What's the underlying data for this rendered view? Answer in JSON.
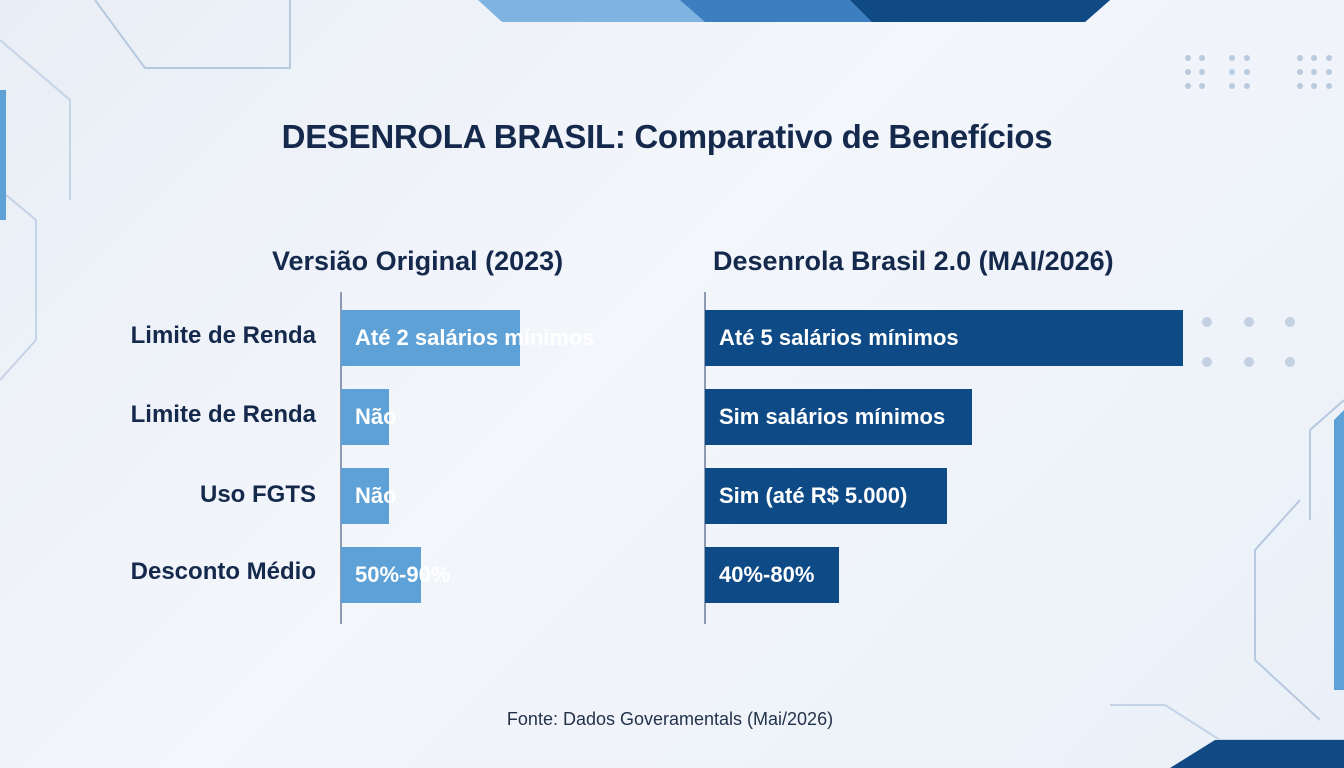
{
  "title": "DESENROLA BRASIL: Comparativo de Benefícios",
  "source": "Fonte: Dados Goveramentals (Mai/2026)",
  "colors": {
    "original": "#5ea1d7",
    "v2": "#0e4a86",
    "text": "#14294b",
    "background": "#eef2f8"
  },
  "chart_data": {
    "type": "table",
    "title": "DESENROLA BRASIL: Comparativo de Benefícios",
    "row_labels": [
      "Limite de Renda",
      "Limite de Renda",
      "Uso FGTS",
      "Desconto Médio"
    ],
    "columns": [
      {
        "name": "Versião Original (2023)",
        "cells": [
          "Até 2 salários mínimos",
          "Não",
          "Não",
          "50%-90%"
        ],
        "bar_fraction": [
          0.56,
          0.15,
          0.15,
          0.25
        ]
      },
      {
        "name": "Desenrola Brasil 2.0 (MAI/2026)",
        "cells": [
          "Até 5 salários mínimos",
          "Sim salários mínimos",
          "Sim (até R$ 5.000)",
          "40%-80%"
        ],
        "bar_fraction": [
          0.93,
          0.52,
          0.47,
          0.26
        ]
      }
    ]
  }
}
